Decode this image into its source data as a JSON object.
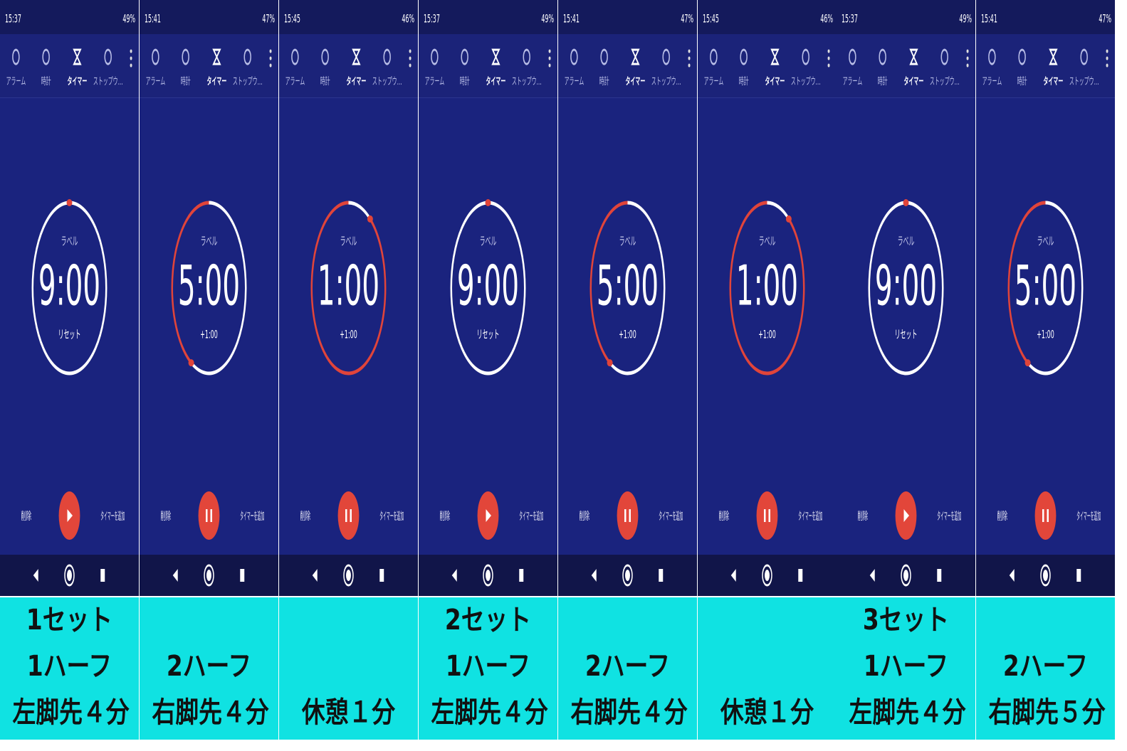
{
  "panels": [
    {
      "status_time": "15:37",
      "battery": "49%",
      "tabs": [
        "アラーム",
        "時計",
        "タイマー",
        "ストップウ…"
      ],
      "label": "ラベル",
      "time": "9:00",
      "sub_button": "リセット",
      "delete": "削除",
      "add_timer": "タイマーを追加",
      "caption": [
        "1セット",
        "1ハーフ",
        "左脚先４分"
      ]
    },
    {
      "status_time": "15:41",
      "battery": "47%",
      "tabs": [
        "アラーム",
        "時計",
        "タイマー",
        "ストップウ…"
      ],
      "label": "ラベル",
      "time": "5:00",
      "sub_button": "+1:00",
      "delete": "削除",
      "add_timer": "タイマーを追加",
      "caption": [
        "2ハーフ",
        "右脚先４分"
      ]
    },
    {
      "status_time": "15:45",
      "battery": "46%",
      "tabs": [
        "アラーム",
        "時計",
        "タイマー",
        "ストップウ…"
      ],
      "label": "ラベル",
      "time": "1:00",
      "sub_button": "+1:00",
      "delete": "削除",
      "add_timer": "タイマーを追加",
      "caption": [
        "休憩１分"
      ]
    },
    {
      "status_time": "15:37",
      "battery": "49%",
      "tabs": [
        "アラーム",
        "時計",
        "タイマー",
        "ストップウ…"
      ],
      "label": "ラベル",
      "time": "9:00",
      "sub_button": "リセット",
      "delete": "削除",
      "add_timer": "タイマーを追加",
      "caption": [
        "2セット",
        "1ハーフ",
        "左脚先４分"
      ]
    },
    {
      "status_time": "15:41",
      "battery": "47%",
      "tabs": [
        "アラーム",
        "時計",
        "タイマー",
        "ストップウ…"
      ],
      "label": "ラベル",
      "time": "5:00",
      "sub_button": "+1:00",
      "delete": "削除",
      "add_timer": "タイマーを追加",
      "caption": [
        "2ハーフ",
        "右脚先４分"
      ]
    },
    {
      "status_time": "15:45",
      "battery": "46%",
      "tabs": [
        "アラーム",
        "時計",
        "タイマー",
        "ストップウ…"
      ],
      "label": "ラベル",
      "time": "1:00",
      "sub_button": "+1:00",
      "delete": "削除",
      "add_timer": "タイマーを追加",
      "caption": [
        "休憩１分"
      ]
    },
    {
      "status_time": "15:37",
      "battery": "49%",
      "tabs": [
        "アラーム",
        "時計",
        "タイマー",
        "ストップウ…"
      ],
      "label": "ラベル",
      "time": "9:00",
      "sub_button": "リセット",
      "delete": "削除",
      "add_timer": "タイマーを追加",
      "caption": [
        "3セット",
        "1ハーフ",
        "左脚先４分"
      ]
    },
    {
      "status_time": "15:41",
      "battery": "47%",
      "tabs": [
        "アラーム",
        "時計",
        "タイマー",
        "ストップウ…"
      ],
      "label": "ラベル",
      "time": "5:00",
      "sub_button": "+1:00",
      "delete": "削除",
      "add_timer": "タイマーを追加",
      "caption": [
        "2ハーフ",
        "右脚先５分"
      ]
    }
  ]
}
